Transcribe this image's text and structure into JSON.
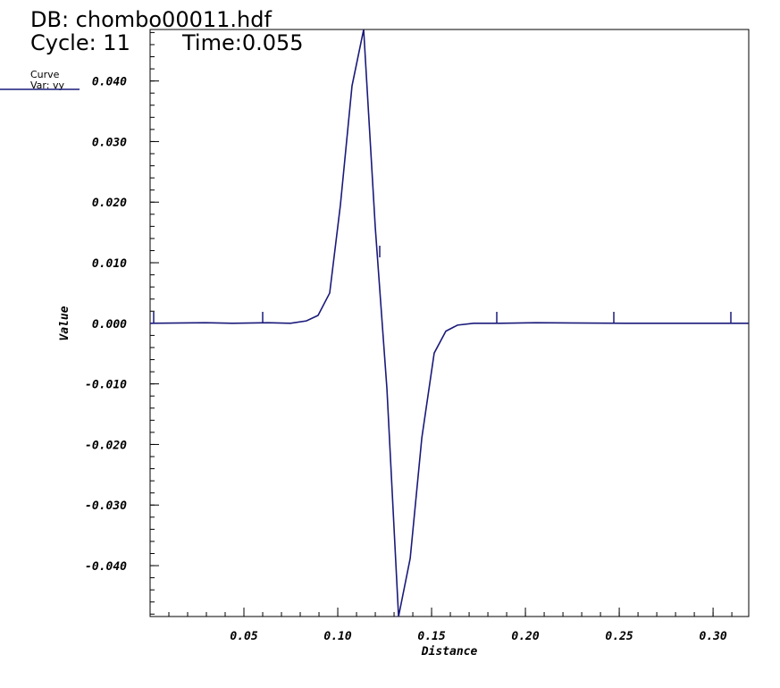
{
  "header": {
    "database": "DB: chombo00011.hdf",
    "cycle": "Cycle: 11",
    "time": "Time:0.055"
  },
  "legend": {
    "title": "Curve",
    "variable": "Var: vy"
  },
  "chart_data": {
    "type": "line",
    "xlabel": "Distance",
    "ylabel": "Value",
    "xlim": [
      0,
      0.319
    ],
    "ylim": [
      -0.0484,
      0.0485
    ],
    "xticks": [
      0.05,
      {
        "value": 0.1,
        "label": "0.10"
      },
      0.15,
      {
        "value": 0.2,
        "label": "0.20"
      },
      0.25,
      {
        "value": 0.3,
        "label": "0.30"
      }
    ],
    "yticks": [
      {
        "value": -0.04,
        "label": "-0.040"
      },
      {
        "value": -0.03,
        "label": "-0.030"
      },
      {
        "value": -0.02,
        "label": "-0.020"
      },
      {
        "value": -0.01,
        "label": "-0.010"
      },
      {
        "value": 0,
        "label": "0.000"
      },
      {
        "value": 0.01,
        "label": "0.010"
      },
      {
        "value": 0.02,
        "label": "0.020"
      },
      {
        "value": 0.03,
        "label": "0.030"
      },
      {
        "value": 0.04,
        "label": "0.040"
      }
    ],
    "series": [
      {
        "name": "vy",
        "color": "#1a1a7a",
        "x": [
          0,
          0.0295,
          0.0438,
          0.0629,
          0.0748,
          0.0833,
          0.0895,
          0.0957,
          0.1014,
          0.1076,
          0.1138,
          0.12,
          0.1262,
          0.1324,
          0.1386,
          0.1448,
          0.1514,
          0.1576,
          0.1638,
          0.1724,
          0.1867,
          0.2057,
          0.2533,
          0.319
        ],
        "values": [
          0,
          0.0001,
          0,
          0.0001,
          0,
          0.0004,
          0.0013,
          0.005,
          0.0195,
          0.0392,
          0.0485,
          0.0158,
          -0.0108,
          -0.0484,
          -0.0388,
          -0.0189,
          -0.0049,
          -0.0013,
          -0.0003,
          0,
          0,
          0.0001,
          0,
          0
        ]
      }
    ]
  }
}
